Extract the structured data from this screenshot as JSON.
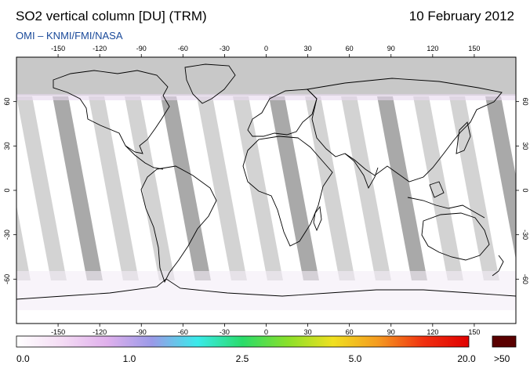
{
  "header": {
    "title": "SO2 vertical column [DU] (TRM)",
    "date": "10 February 2012",
    "source": "OMI  –  KNMI/FMI/NASA"
  },
  "map": {
    "longitude_ticks": [
      "-150",
      "-120",
      "-90",
      "-60",
      "-30",
      "0",
      "30",
      "60",
      "90",
      "120",
      "150"
    ],
    "latitude_ticks": [
      "60",
      "30",
      "0",
      "-30",
      "-60"
    ],
    "colors": {
      "no_data_polar": "#c8c8c8",
      "orbit_gap": "#d3d3d3",
      "orbit_gap_dark": "#a9a9a9",
      "coastline": "#000000",
      "background": "#ffffff"
    }
  },
  "colorbar": {
    "labels": [
      "0.0",
      "1.0",
      "2.5",
      "5.0",
      "20.0"
    ],
    "overflow_label": ">50",
    "overflow_color": "#5a0000",
    "gradient_colors": [
      "#ffffff",
      "#f4dcf4",
      "#e0b0ec",
      "#9a9ae8",
      "#3aeaea",
      "#2adc6a",
      "#8ae02a",
      "#f0e020",
      "#f59a20",
      "#f03010",
      "#e00000"
    ]
  }
}
